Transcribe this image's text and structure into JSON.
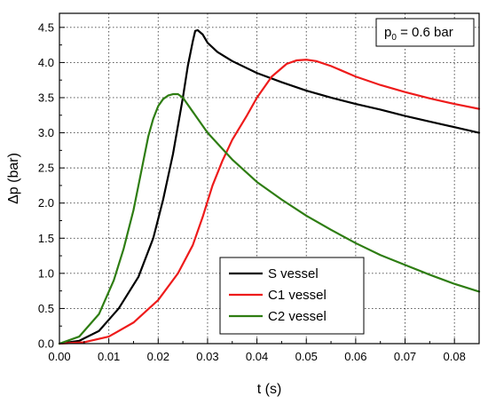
{
  "chart_data": {
    "type": "line",
    "xlabel": "t (s)",
    "ylabel": "Δp (bar)",
    "xlim": [
      0,
      0.085
    ],
    "ylim": [
      0,
      4.7
    ],
    "grid": true,
    "legend_position": "lower-right",
    "x_ticks": [
      0.0,
      0.01,
      0.02,
      0.03,
      0.04,
      0.05,
      0.06,
      0.07,
      0.08
    ],
    "x_tick_labels": [
      "0.00",
      "0.01",
      "0.02",
      "0.03",
      "0.04",
      "0.05",
      "0.06",
      "0.07",
      "0.08"
    ],
    "y_ticks": [
      0.0,
      0.5,
      1.0,
      1.5,
      2.0,
      2.5,
      3.0,
      3.5,
      4.0,
      4.5
    ],
    "y_tick_labels": [
      "0.0",
      "0.5",
      "1.0",
      "1.5",
      "2.0",
      "2.5",
      "3.0",
      "3.5",
      "4.0",
      "4.5"
    ],
    "annotation": {
      "base": "p",
      "sub": "0",
      "rest": " = 0.6 bar"
    },
    "series": [
      {
        "name": "S vessel",
        "color": "#000000",
        "x": [
          0.0,
          0.004,
          0.008,
          0.012,
          0.016,
          0.019,
          0.021,
          0.023,
          0.025,
          0.026,
          0.027,
          0.0275,
          0.028,
          0.029,
          0.03,
          0.032,
          0.035,
          0.04,
          0.045,
          0.05,
          0.055,
          0.06,
          0.065,
          0.07,
          0.075,
          0.08,
          0.085
        ],
        "y": [
          0.0,
          0.04,
          0.18,
          0.5,
          0.95,
          1.5,
          2.05,
          2.7,
          3.5,
          3.95,
          4.3,
          4.45,
          4.46,
          4.4,
          4.28,
          4.15,
          4.02,
          3.85,
          3.72,
          3.6,
          3.5,
          3.41,
          3.33,
          3.24,
          3.16,
          3.08,
          3.0
        ]
      },
      {
        "name": "C1 vessel",
        "color": "#ee1b1b",
        "x": [
          0.0,
          0.005,
          0.01,
          0.015,
          0.02,
          0.024,
          0.027,
          0.029,
          0.031,
          0.033,
          0.035,
          0.038,
          0.04,
          0.043,
          0.046,
          0.048,
          0.05,
          0.052,
          0.055,
          0.06,
          0.065,
          0.07,
          0.075,
          0.08,
          0.085
        ],
        "y": [
          0.0,
          0.02,
          0.1,
          0.3,
          0.62,
          1.0,
          1.4,
          1.8,
          2.25,
          2.6,
          2.9,
          3.25,
          3.5,
          3.8,
          3.98,
          4.03,
          4.04,
          4.02,
          3.95,
          3.8,
          3.68,
          3.58,
          3.49,
          3.41,
          3.34
        ]
      },
      {
        "name": "C2 vessel",
        "color": "#2e7d12",
        "x": [
          0.0,
          0.004,
          0.008,
          0.011,
          0.013,
          0.015,
          0.016,
          0.017,
          0.018,
          0.019,
          0.02,
          0.021,
          0.022,
          0.023,
          0.024,
          0.025,
          0.027,
          0.03,
          0.035,
          0.04,
          0.045,
          0.05,
          0.055,
          0.06,
          0.065,
          0.07,
          0.075,
          0.08,
          0.085
        ],
        "y": [
          0.0,
          0.1,
          0.42,
          0.9,
          1.35,
          1.9,
          2.25,
          2.6,
          2.95,
          3.2,
          3.38,
          3.48,
          3.53,
          3.55,
          3.55,
          3.5,
          3.3,
          3.0,
          2.62,
          2.3,
          2.05,
          1.82,
          1.62,
          1.43,
          1.26,
          1.12,
          0.98,
          0.85,
          0.74
        ]
      }
    ]
  }
}
